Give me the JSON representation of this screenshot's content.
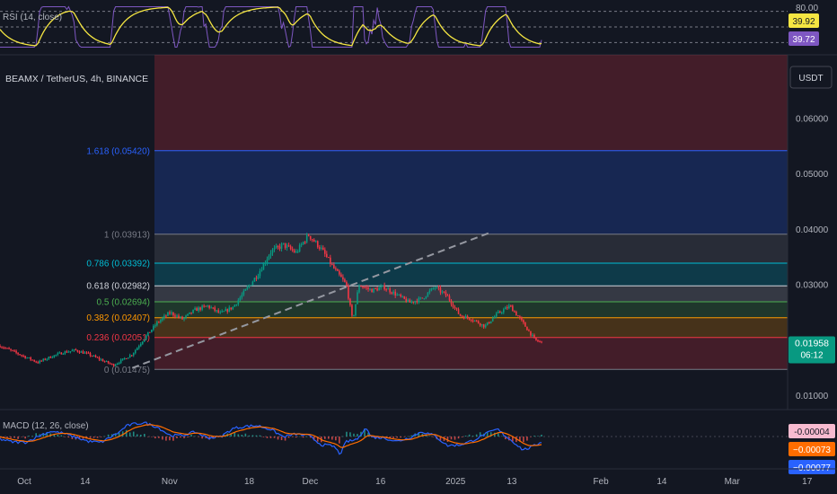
{
  "chart_data": [
    {
      "type": "line",
      "indicator": "RSI",
      "label": "RSI (14, close)",
      "ylim": [
        20,
        80
      ],
      "levels": [
        70,
        50,
        30
      ],
      "axis_label": "80.00",
      "badges": [
        {
          "text": "39.92",
          "value": 39.92,
          "color": "#f5e642",
          "text_color": "#131722"
        },
        {
          "text": "39.72",
          "value": 39.72,
          "color": "#7e57c2",
          "text_color": "#ffffff"
        }
      ]
    },
    {
      "type": "candlestick",
      "title": "BEAMX / TetherUS, 4h, BINANCE",
      "currency": "USDT",
      "ylim": [
        0.0075,
        0.0715
      ],
      "yticks": [
        "0.06000",
        "0.05000",
        "0.04000",
        "0.03000",
        "0.02000",
        "0.01000"
      ],
      "ytick_values": [
        0.06,
        0.05,
        0.04,
        0.03,
        0.02,
        0.01
      ],
      "current_price": {
        "text": "0.01958",
        "value": 0.01958,
        "countdown": "06:12",
        "color": "#089981"
      },
      "price_path": [
        [
          0,
          0.019
        ],
        [
          2,
          0.018
        ],
        [
          4,
          0.017
        ],
        [
          6,
          0.016
        ],
        [
          8,
          0.017
        ],
        [
          10,
          0.0178
        ],
        [
          12,
          0.0182
        ],
        [
          14,
          0.0175
        ],
        [
          16,
          0.0165
        ],
        [
          18,
          0.0155
        ],
        [
          21,
          0.0175
        ],
        [
          23,
          0.0205
        ],
        [
          25,
          0.0232
        ],
        [
          27,
          0.025
        ],
        [
          29,
          0.0238
        ],
        [
          31,
          0.0255
        ],
        [
          33,
          0.0262
        ],
        [
          35,
          0.0248
        ],
        [
          37,
          0.026
        ],
        [
          39,
          0.029
        ],
        [
          41,
          0.032
        ],
        [
          43,
          0.036
        ],
        [
          45,
          0.0372
        ],
        [
          47,
          0.0358
        ],
        [
          49,
          0.039
        ],
        [
          51,
          0.0365
        ],
        [
          53,
          0.033
        ],
        [
          55,
          0.03
        ],
        [
          56,
          0.0235
        ],
        [
          57,
          0.03
        ],
        [
          59,
          0.029
        ],
        [
          61,
          0.0296
        ],
        [
          63,
          0.0282
        ],
        [
          65,
          0.0268
        ],
        [
          67,
          0.0275
        ],
        [
          69,
          0.0296
        ],
        [
          71,
          0.028
        ],
        [
          73,
          0.0245
        ],
        [
          75,
          0.0238
        ],
        [
          77,
          0.0225
        ],
        [
          79,
          0.0248
        ],
        [
          81,
          0.0262
        ],
        [
          83,
          0.0232
        ],
        [
          85,
          0.02
        ],
        [
          86,
          0.0196
        ]
      ],
      "fib": {
        "levels": [
          {
            "ratio": "1.618",
            "value": 0.0542,
            "text": "1.618 (0.05420)",
            "color": "#2962ff"
          },
          {
            "ratio": "1",
            "value": 0.03913,
            "text": "1 (0.03913)",
            "color": "#787b86"
          },
          {
            "ratio": "0.786",
            "value": 0.03392,
            "text": "0.786 (0.03392)",
            "color": "#00bcd4"
          },
          {
            "ratio": "0.618",
            "value": 0.02982,
            "text": "0.618 (0.02982)",
            "color": "#d1d4dc"
          },
          {
            "ratio": "0.5",
            "value": 0.02694,
            "text": "0.5 (0.02694)",
            "color": "#4caf50"
          },
          {
            "ratio": "0.382",
            "value": 0.02407,
            "text": "0.382 (0.02407)",
            "color": "#ff9800"
          },
          {
            "ratio": "0.236",
            "value": 0.02051,
            "text": "0.236 (0.02051)",
            "color": "#f23645"
          },
          {
            "ratio": "0",
            "value": 0.01475,
            "text": "0 (0.01475)",
            "color": "#787b86"
          }
        ],
        "zones": [
          {
            "from": 0.0542,
            "to": 0.0715,
            "color": "#f23645"
          },
          {
            "from": 0.03913,
            "to": 0.0542,
            "color": "#2962ff"
          },
          {
            "from": 0.03392,
            "to": 0.03913,
            "color": "#787b86"
          },
          {
            "from": 0.02982,
            "to": 0.03392,
            "color": "#00bcd4"
          },
          {
            "from": 0.02694,
            "to": 0.02982,
            "color": "#b2b5be"
          },
          {
            "from": 0.02407,
            "to": 0.02694,
            "color": "#4caf50"
          },
          {
            "from": 0.02051,
            "to": 0.02407,
            "color": "#ff9800"
          },
          {
            "from": 0.01475,
            "to": 0.02051,
            "color": "#f23645"
          }
        ],
        "trendline": [
          [
            21,
            0.015
          ],
          [
            78,
            0.0395
          ]
        ]
      }
    },
    {
      "type": "line",
      "indicator": "MACD",
      "label": "MACD (12, 26, close)",
      "badges": [
        {
          "text": "-0.00004",
          "value": -4e-05,
          "color": "#f8bbd0",
          "text_color": "#131722"
        },
        {
          "text": "−0.00073",
          "value": -0.00073,
          "color": "#ff6d00",
          "text_color": "#ffffff"
        },
        {
          "text": "−0.00077",
          "value": -0.00077,
          "color": "#2962ff",
          "text_color": "#ffffff"
        }
      ]
    }
  ],
  "time_axis": {
    "ticks": [
      {
        "label": "Oct",
        "day": 0
      },
      {
        "label": "14",
        "day": 13
      },
      {
        "label": "Nov",
        "day": 31
      },
      {
        "label": "18",
        "day": 48
      },
      {
        "label": "Dec",
        "day": 61
      },
      {
        "label": "16",
        "day": 76
      },
      {
        "label": "2025",
        "day": 92
      },
      {
        "label": "13",
        "day": 104
      },
      {
        "label": "Feb",
        "day": 123
      },
      {
        "label": "14",
        "day": 136
      },
      {
        "label": "Mar",
        "day": 151
      },
      {
        "label": "17",
        "day": 167
      }
    ]
  },
  "colors": {
    "up": "#089981",
    "down": "#f23645",
    "rsi": "#7e57c2",
    "rsi_ma": "#f5e642",
    "macd": "#2962ff",
    "signal": "#ff6d00"
  }
}
